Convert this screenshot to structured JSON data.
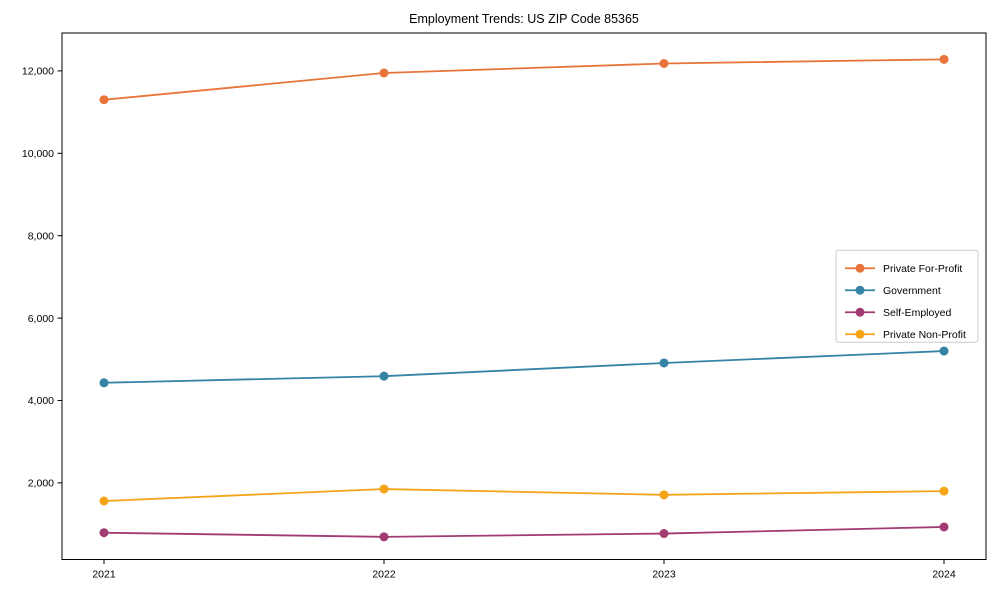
{
  "chart_data": {
    "type": "line",
    "title": "Employment Trends: US ZIP Code 85365",
    "x": [
      2021,
      2022,
      2023,
      2024
    ],
    "x_tick_labels": [
      "2021",
      "2022",
      "2023",
      "2024"
    ],
    "series": [
      {
        "name": "Private For-Profit",
        "color": "#E8743B",
        "values": [
          11300,
          11950,
          12180,
          12280
        ]
      },
      {
        "name": "Government",
        "color": "#3583A5",
        "values": [
          4430,
          4590,
          4910,
          5200
        ]
      },
      {
        "name": "Self-Employed",
        "color": "#A23B72",
        "values": [
          790,
          690,
          770,
          930
        ]
      },
      {
        "name": "Private Non-Profit",
        "color": "#F5A418",
        "values": [
          1560,
          1850,
          1710,
          1800
        ]
      }
    ],
    "y_ticks": [
      2000,
      4000,
      6000,
      8000,
      10000,
      12000
    ],
    "y_tick_labels": [
      "2,000",
      "4,000",
      "6,000",
      "8,000",
      "10,000",
      "12,000"
    ],
    "ylim": [
      140,
      12920
    ],
    "xlim": [
      2020.85,
      2024.15
    ],
    "legend_position": "center right",
    "grid": false,
    "xlabel": "",
    "ylabel": ""
  }
}
